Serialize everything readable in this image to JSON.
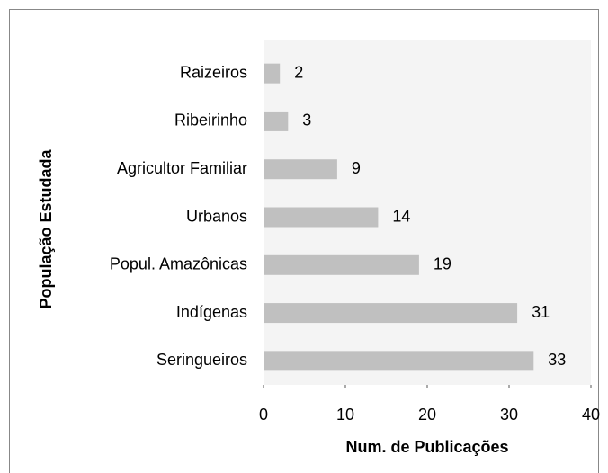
{
  "chart_data": {
    "type": "bar",
    "orientation": "horizontal",
    "xlabel": "Num. de Publicações",
    "ylabel": "População Estudada",
    "categories": [
      "Raizeiros",
      "Ribeirinho",
      "Agricultor Familiar",
      "Urbanos",
      "Popul. Amazônicas",
      "Indígenas",
      "Seringueiros"
    ],
    "values": [
      2,
      3,
      9,
      14,
      19,
      31,
      33
    ],
    "color": "#c0c0c0",
    "xlim": [
      0,
      40
    ],
    "xticks": [
      0,
      10,
      20,
      30,
      40
    ],
    "grid": false
  }
}
